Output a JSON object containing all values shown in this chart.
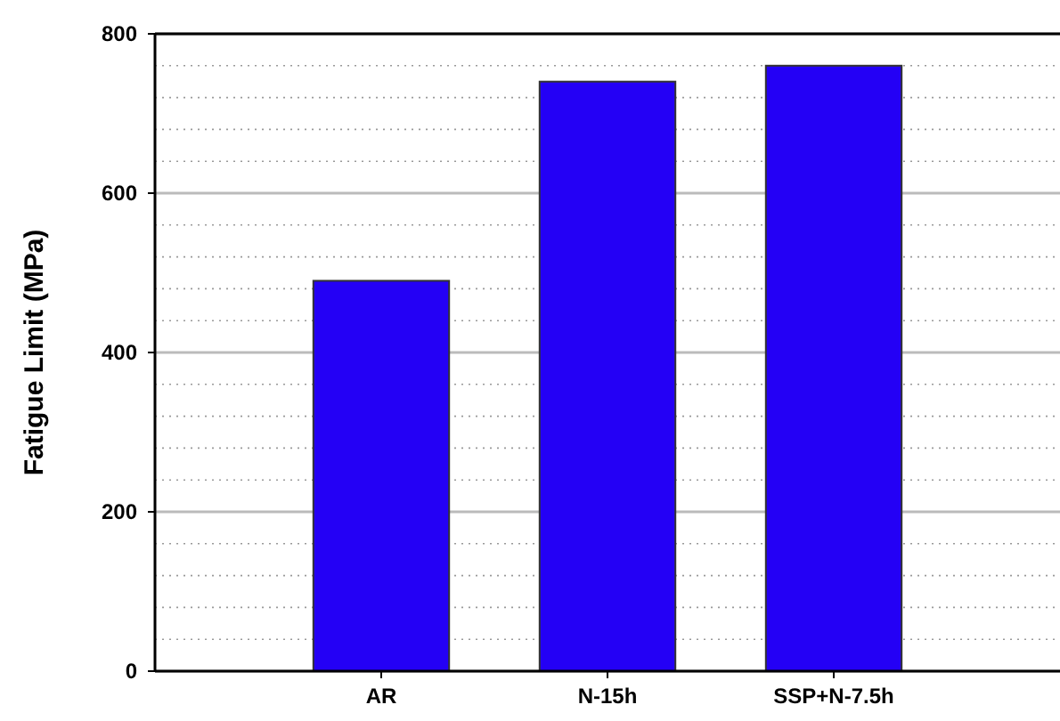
{
  "chart_data": {
    "type": "bar",
    "ylabel": "Fatigue Limit (MPa)",
    "categories": [
      "AR",
      "N-15h",
      "SSP+N-7.5h"
    ],
    "values": [
      490,
      740,
      760
    ],
    "color": "#2400f5",
    "ylim": [
      0,
      800
    ],
    "yticks": [
      0,
      {
        "value": 40,
        "label": null
      },
      {
        "value": 80,
        "label": null
      },
      {
        "value": 120,
        "label": null
      },
      {
        "value": 160,
        "label": null
      },
      200,
      {
        "value": 240,
        "label": null
      },
      {
        "value": 280,
        "label": null
      },
      {
        "value": 320,
        "label": null
      },
      {
        "value": 360,
        "label": null
      },
      400,
      {
        "value": 440,
        "label": null
      },
      {
        "value": 480,
        "label": null
      },
      {
        "value": 520,
        "label": null
      },
      {
        "value": 560,
        "label": null
      },
      600,
      {
        "value": 640,
        "label": null
      },
      {
        "value": 680,
        "label": null
      },
      {
        "value": 720,
        "label": null
      },
      {
        "value": 760,
        "label": null
      },
      800
    ],
    "grid": "y"
  }
}
